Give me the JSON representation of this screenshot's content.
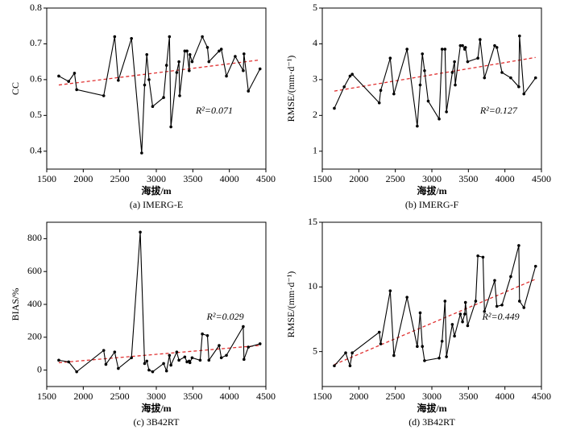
{
  "chart_data": [
    {
      "type": "line",
      "ylabel": "CC",
      "xlabel": "海拔/m",
      "caption": "(a) IMERG-E",
      "annotation": "R²=0.071",
      "color": "#000000",
      "x": [
        1665,
        1800,
        1880,
        1910,
        2280,
        2430,
        2480,
        2660,
        2800,
        2840,
        2870,
        2900,
        2950,
        3100,
        3140,
        3180,
        3200,
        3280,
        3310,
        3320,
        3390,
        3420,
        3450,
        3460,
        3490,
        3630,
        3700,
        3720,
        3860,
        3890,
        3960,
        4080,
        4190,
        4200,
        4260,
        4420
      ],
      "values": [
        0.61,
        0.595,
        0.618,
        0.572,
        0.555,
        0.72,
        0.598,
        0.715,
        0.395,
        0.585,
        0.67,
        0.6,
        0.525,
        0.55,
        0.64,
        0.72,
        0.468,
        0.62,
        0.65,
        0.555,
        0.68,
        0.68,
        0.625,
        0.67,
        0.65,
        0.72,
        0.69,
        0.65,
        0.68,
        0.685,
        0.61,
        0.665,
        0.625,
        0.672,
        0.568,
        0.63
      ],
      "trend": {
        "x": [
          1665,
          4420
        ],
        "values": [
          0.585,
          0.655
        ],
        "color": "#e03030"
      },
      "xlim": [
        1500,
        4500
      ],
      "xticks": [
        1500,
        2000,
        2500,
        3000,
        3500,
        4000,
        4500
      ],
      "ylim": [
        0.35,
        0.8
      ],
      "yticks": [
        0.4,
        0.5,
        0.6,
        0.7,
        0.8
      ]
    },
    {
      "type": "line",
      "ylabel": "RMSE/(mm·d⁻¹)",
      "xlabel": "海拔/m",
      "caption": "(b) IMERG-F",
      "annotation": "R²=0.127",
      "color": "#000000",
      "x": [
        1665,
        1800,
        1880,
        1910,
        2280,
        2300,
        2430,
        2480,
        2660,
        2800,
        2840,
        2870,
        2900,
        2950,
        3100,
        3140,
        3180,
        3200,
        3280,
        3310,
        3320,
        3390,
        3420,
        3450,
        3460,
        3490,
        3630,
        3660,
        3720,
        3860,
        3890,
        3960,
        4080,
        4190,
        4200,
        4260,
        4420
      ],
      "values": [
        2.2,
        2.8,
        3.1,
        3.15,
        2.35,
        2.7,
        3.6,
        2.6,
        3.85,
        1.7,
        2.85,
        3.72,
        3.25,
        2.4,
        1.9,
        3.85,
        3.85,
        2.1,
        3.2,
        3.5,
        2.85,
        3.95,
        3.95,
        3.85,
        3.9,
        3.5,
        3.6,
        4.12,
        3.05,
        3.95,
        3.9,
        3.2,
        3.05,
        2.8,
        4.22,
        2.6,
        3.05
      ],
      "trend": {
        "x": [
          1665,
          4420
        ],
        "values": [
          2.68,
          3.62
        ],
        "color": "#e03030"
      },
      "xlim": [
        1500,
        4500
      ],
      "xticks": [
        1500,
        2000,
        2500,
        3000,
        3500,
        4000,
        4500
      ],
      "ylim": [
        0.5,
        5
      ],
      "yticks": [
        1,
        2,
        3,
        4,
        5
      ]
    },
    {
      "type": "line",
      "ylabel": "BIAS/%",
      "xlabel": "海拔/m",
      "caption": "(c) 3B42RT",
      "annotation": "R²=0.029",
      "color": "#000000",
      "x": [
        1665,
        1800,
        1910,
        2280,
        2310,
        2430,
        2480,
        2660,
        2780,
        2840,
        2870,
        2900,
        2950,
        3100,
        3140,
        3180,
        3200,
        3280,
        3310,
        3390,
        3420,
        3450,
        3460,
        3490,
        3600,
        3630,
        3700,
        3720,
        3860,
        3890,
        3960,
        4190,
        4200,
        4260,
        4420
      ],
      "values": [
        60,
        50,
        -10,
        120,
        35,
        110,
        10,
        75,
        840,
        40,
        55,
        0,
        -10,
        40,
        -5,
        90,
        30,
        110,
        60,
        80,
        50,
        55,
        45,
        75,
        60,
        220,
        210,
        60,
        150,
        75,
        90,
        265,
        65,
        140,
        160
      ],
      "trend": {
        "x": [
          1665,
          4420
        ],
        "values": [
          45,
          150
        ],
        "color": "#e03030"
      },
      "xlim": [
        1500,
        4500
      ],
      "xticks": [
        1500,
        2000,
        2500,
        3000,
        3500,
        4000,
        4500
      ],
      "ylim": [
        -100,
        900
      ],
      "yticks": [
        0,
        200,
        400,
        600,
        800
      ]
    },
    {
      "type": "line",
      "ylabel": "RMSE/(mm·d⁻¹)",
      "xlabel": "海拔/m",
      "caption": "(d) 3B42RT",
      "annotation": "R²=0.449",
      "color": "#000000",
      "x": [
        1665,
        1820,
        1880,
        1910,
        2280,
        2300,
        2430,
        2480,
        2660,
        2800,
        2840,
        2870,
        2900,
        3100,
        3140,
        3180,
        3200,
        3280,
        3310,
        3390,
        3420,
        3450,
        3460,
        3490,
        3600,
        3630,
        3700,
        3720,
        3860,
        3890,
        3960,
        4080,
        4190,
        4200,
        4260,
        4420
      ],
      "values": [
        3.9,
        4.9,
        3.9,
        4.9,
        6.5,
        5.6,
        9.7,
        4.7,
        9.2,
        5.4,
        8,
        5.4,
        4.3,
        4.5,
        5.8,
        8.9,
        4.6,
        7.1,
        6.2,
        7.9,
        7.3,
        7.9,
        8.8,
        7,
        8.9,
        12.4,
        12.3,
        8.1,
        10.5,
        8.5,
        8.6,
        10.8,
        13.2,
        8.9,
        8.4,
        11.6
      ],
      "trend": {
        "x": [
          1665,
          4420
        ],
        "values": [
          4.0,
          10.6
        ],
        "color": "#e03030"
      },
      "xlim": [
        1500,
        4500
      ],
      "xticks": [
        1500,
        2000,
        2500,
        3000,
        3500,
        4000,
        4500
      ],
      "ylim": [
        2.3,
        15
      ],
      "yticks": [
        5,
        10,
        15
      ]
    }
  ]
}
